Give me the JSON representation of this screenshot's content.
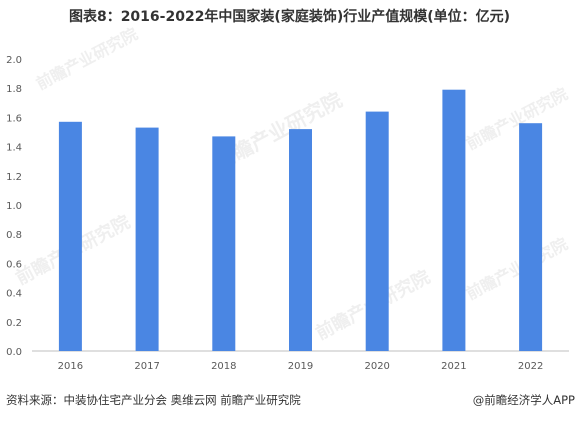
{
  "title": "图表8：2016-2022年中国家装(家庭装饰)行业产值规模(单位：亿元)",
  "footer": {
    "source": "资料来源：中装协住宅产业分会 奥维云网 前瞻产业研究院",
    "brand": "@前瞻经济学人APP"
  },
  "watermark": "前瞻产业研究院",
  "colors": {
    "bar": "#4a86e3",
    "axis": "#bfbfbf",
    "text": "#595959"
  },
  "chart_data": {
    "type": "bar",
    "categories": [
      "2016",
      "2017",
      "2018",
      "2019",
      "2020",
      "2021",
      "2022"
    ],
    "values": [
      1.57,
      1.53,
      1.47,
      1.52,
      1.64,
      1.79,
      1.56
    ],
    "title": "图表8：2016-2022年中国家装(家庭装饰)行业产值规模(单位：亿元)",
    "xlabel": "",
    "ylabel": "",
    "ylim": [
      0,
      2.0
    ],
    "yticks": [
      "0.0",
      "0.2",
      "0.4",
      "0.6",
      "0.8",
      "1.0",
      "1.2",
      "1.4",
      "1.6",
      "1.8",
      "2.0"
    ],
    "grid": false,
    "legend": "none"
  }
}
